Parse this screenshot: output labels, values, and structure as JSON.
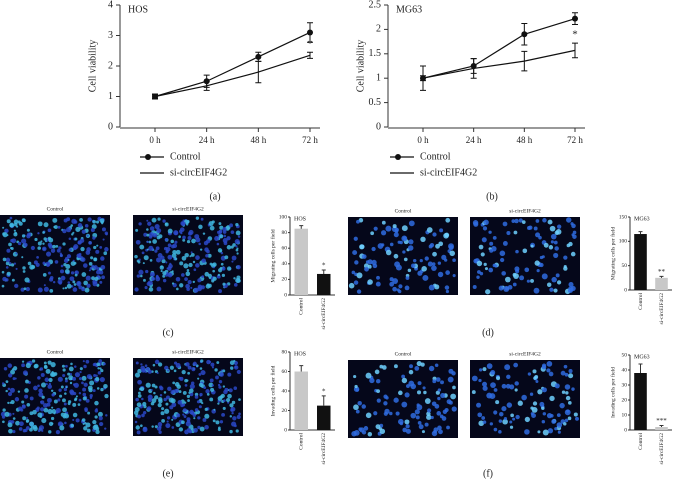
{
  "chart_data": [
    {
      "type": "line",
      "title": "HOS",
      "y_label": "Cell viability",
      "panel_label": "(a)",
      "categories": [
        "0 h",
        "24 h",
        "48 h",
        "72 h"
      ],
      "series": [
        {
          "name": "Control",
          "color": "#111111",
          "marker": "circle",
          "values": [
            1.0,
            1.5,
            2.3,
            3.1
          ],
          "errors": [
            0.08,
            0.2,
            0.15,
            0.32
          ]
        },
        {
          "name": "si-circEIF4G2",
          "color": "#111111",
          "marker": "none",
          "values": [
            1.0,
            1.35,
            1.8,
            2.35
          ],
          "errors": [
            0.05,
            0.15,
            0.35,
            0.1
          ]
        }
      ],
      "annotations": [
        "*"
      ],
      "ylim": [
        0,
        4
      ],
      "yticks": [
        0,
        1,
        2,
        3,
        4
      ]
    },
    {
      "type": "line",
      "title": "MG63",
      "y_label": "Cell viability",
      "panel_label": "(b)",
      "categories": [
        "0 h",
        "24 h",
        "48 h",
        "72 h"
      ],
      "series": [
        {
          "name": "Control",
          "color": "#111111",
          "marker": "circle",
          "values": [
            1.0,
            1.25,
            1.9,
            2.22
          ],
          "errors": [
            0.25,
            0.15,
            0.22,
            0.12
          ]
        },
        {
          "name": "si-circEIF4G2",
          "color": "#111111",
          "marker": "none",
          "values": [
            1.0,
            1.2,
            1.35,
            1.57
          ],
          "errors": [
            0.05,
            0.2,
            0.2,
            0.15
          ]
        }
      ],
      "annotations": [
        "*"
      ],
      "ylim": [
        0,
        2.5
      ],
      "yticks": [
        0,
        0.5,
        1.0,
        1.5,
        2.0,
        2.5
      ]
    },
    {
      "type": "bar",
      "title": "HOS",
      "y_label": "Migrating cells per field",
      "panel_label": "(c)",
      "categories": [
        "Control",
        "si-circEIF4G2"
      ],
      "values": [
        85,
        27
      ],
      "errors": [
        4,
        5
      ],
      "colors": [
        "#c8c8c8",
        "#111111"
      ],
      "annotations": [
        "*"
      ],
      "ylim": [
        0,
        100
      ],
      "yticks": [
        0,
        20,
        40,
        60,
        80,
        100
      ]
    },
    {
      "type": "bar",
      "title": "MG63",
      "y_label": "Migrating cells per field",
      "panel_label": "(d)",
      "categories": [
        "Control",
        "si-circEIF4G2"
      ],
      "values": [
        115,
        25
      ],
      "errors": [
        5,
        3
      ],
      "colors": [
        "#111111",
        "#c8c8c8"
      ],
      "annotations": [
        "**"
      ],
      "ylim": [
        0,
        150
      ],
      "yticks": [
        0,
        50,
        100,
        150
      ]
    },
    {
      "type": "bar",
      "title": "HOS",
      "y_label": "Invading cells per field",
      "panel_label": "(e)",
      "categories": [
        "Control",
        "si-circEIF4G2"
      ],
      "values": [
        60,
        25
      ],
      "errors": [
        6,
        10
      ],
      "colors": [
        "#c8c8c8",
        "#111111"
      ],
      "annotations": [
        "*"
      ],
      "ylim": [
        0,
        80
      ],
      "yticks": [
        0,
        20,
        40,
        60,
        80
      ]
    },
    {
      "type": "bar",
      "title": "MG63",
      "y_label": "Invading cells per field",
      "panel_label": "(f)",
      "categories": [
        "Control",
        "si-circEIF4G2"
      ],
      "values": [
        38,
        2
      ],
      "errors": [
        6,
        1
      ],
      "colors": [
        "#111111",
        "#c8c8c8"
      ],
      "annotations": [
        "***"
      ],
      "ylim": [
        0,
        50
      ],
      "yticks": [
        0,
        10,
        20,
        30,
        40,
        50
      ]
    }
  ],
  "micrographs": [
    {
      "caption": "Control"
    },
    {
      "caption": "si-circEIF4G2"
    },
    {
      "caption": "Control"
    },
    {
      "caption": "si-circEIF4G2"
    },
    {
      "caption": "Control"
    },
    {
      "caption": "si-circEIF4G2"
    },
    {
      "caption": "Control"
    },
    {
      "caption": "si-circEIF4G2"
    }
  ]
}
